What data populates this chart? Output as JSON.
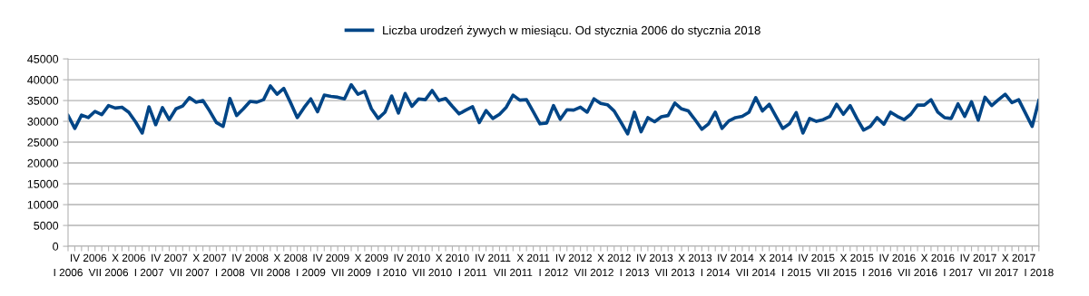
{
  "chart_data": {
    "type": "line",
    "categories": [
      "I 2006",
      null,
      null,
      "IV 2006",
      null,
      null,
      "VII 2006",
      null,
      null,
      "X 2006",
      null,
      null,
      "I 2007",
      null,
      null,
      "IV 2007",
      null,
      null,
      "VII 2007",
      null,
      null,
      "X 2007",
      null,
      null,
      "I 2008",
      null,
      null,
      "IV 2008",
      null,
      null,
      "VII 2008",
      null,
      null,
      "X 2008",
      null,
      null,
      "I 2009",
      null,
      null,
      "IV 2009",
      null,
      null,
      "VII 2009",
      null,
      null,
      "X 2009",
      null,
      null,
      "I 2010",
      null,
      null,
      "IV 2010",
      null,
      null,
      "VII 2010",
      null,
      null,
      "X 2010",
      null,
      null,
      "I 2011",
      null,
      null,
      "IV 2011",
      null,
      null,
      "VII 2011",
      null,
      null,
      "X 2011",
      null,
      null,
      "I 2012",
      null,
      null,
      "IV 2012",
      null,
      null,
      "VII 2012",
      null,
      null,
      "X 2012",
      null,
      null,
      "I 2013",
      null,
      null,
      "IV 2013",
      null,
      null,
      "VII 2013",
      null,
      null,
      "X 2013",
      null,
      null,
      "I 2014",
      null,
      null,
      "IV 2014",
      null,
      null,
      "VII 2014",
      null,
      null,
      "X 2014",
      null,
      null,
      "I 2015",
      null,
      null,
      "IV 2015",
      null,
      null,
      "VII 2015",
      null,
      null,
      "X 2015",
      null,
      null,
      "I 2016",
      null,
      null,
      "IV 2016",
      null,
      null,
      "VII 2016",
      null,
      null,
      "X 2016",
      null,
      null,
      "I 2017",
      null,
      null,
      "IV 2017",
      null,
      null,
      "VII 2017",
      null,
      null,
      "X 2017",
      null,
      null,
      "I 2018"
    ],
    "series": [
      {
        "name": "Liczba urodzeń żywych w miesiącu. Od stycznia 2006 do stycznia 2018",
        "color": "#004586",
        "values": [
          31400,
          28300,
          31500,
          30900,
          32400,
          31600,
          33800,
          33200,
          33400,
          32200,
          29900,
          27200,
          33500,
          29200,
          33300,
          30400,
          33000,
          33700,
          35700,
          34600,
          35000,
          32500,
          29700,
          28800,
          35500,
          31400,
          33000,
          34800,
          34600,
          35200,
          38500,
          36500,
          37900,
          34500,
          30900,
          33300,
          35400,
          32300,
          36300,
          36000,
          35800,
          35400,
          38800,
          36500,
          37200,
          33000,
          30700,
          32200,
          36100,
          32000,
          36700,
          33600,
          35400,
          35200,
          37400,
          35000,
          35500,
          33600,
          31800,
          32700,
          33500,
          29700,
          32600,
          30700,
          31700,
          33400,
          36300,
          35100,
          35200,
          32300,
          29400,
          29600,
          33800,
          30500,
          32800,
          32700,
          33400,
          32200,
          35400,
          34300,
          34000,
          32500,
          29800,
          27000,
          32200,
          27500,
          30900,
          29900,
          31100,
          31400,
          34400,
          33000,
          32500,
          30400,
          28100,
          29400,
          32200,
          28300,
          30100,
          30900,
          31200,
          32200,
          35700,
          32500,
          34100,
          31200,
          28300,
          29400,
          32100,
          27200,
          30700,
          30000,
          30400,
          31200,
          34100,
          31700,
          33800,
          30700,
          27900,
          28800,
          30900,
          29300,
          32200,
          31200,
          30400,
          31700,
          33900,
          33900,
          35200,
          32200,
          30900,
          30700,
          34200,
          31200,
          34700,
          30300,
          35800,
          33800,
          35200,
          36500,
          34500,
          35200,
          32000,
          28800,
          35000
        ]
      }
    ],
    "ylim": [
      0,
      45000
    ],
    "yticks": [
      0,
      5000,
      10000,
      15000,
      20000,
      25000,
      30000,
      35000,
      40000,
      45000
    ],
    "grid": "y",
    "legend": "top",
    "marker": "none",
    "line_style": "solid"
  }
}
